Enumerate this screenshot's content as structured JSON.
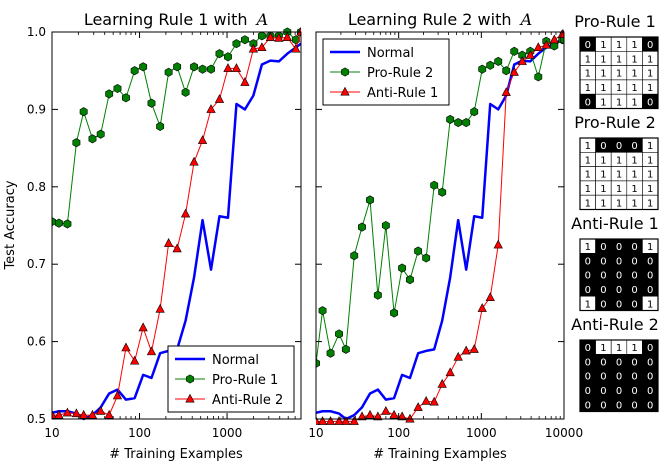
{
  "chart_data": [
    {
      "type": "line",
      "title": "Learning Rule 1 with",
      "title_symbol": "A",
      "xlabel": "# Training Examples",
      "ylabel": "Test Accuracy",
      "xscale": "log",
      "xlim": [
        10,
        7000
      ],
      "ylim": [
        0.5,
        1.0
      ],
      "xticks": [
        10,
        100,
        1000
      ],
      "xtick_labels": [
        "10",
        "100",
        "1000"
      ],
      "yticks": [
        0.5,
        0.6,
        0.7,
        0.8,
        0.9,
        1.0
      ],
      "ytick_labels": [
        "0.5",
        "0.6",
        "0.7",
        "0.8",
        "0.9",
        "1.0"
      ],
      "legend_position": "bottom-right",
      "series": [
        {
          "name": "Normal",
          "color": "#0000ff",
          "marker": "none",
          "x": [
            10,
            12,
            15,
            19,
            23,
            29,
            36,
            45,
            56,
            70,
            88,
            110,
            137,
            172,
            215,
            269,
            336,
            420,
            525,
            656,
            820,
            1025,
            1281,
            1601,
            2001,
            2502,
            3127,
            3909,
            4886,
            6107,
            7000
          ],
          "y": [
            0.508,
            0.51,
            0.51,
            0.507,
            0.5,
            0.505,
            0.515,
            0.533,
            0.538,
            0.525,
            0.527,
            0.557,
            0.553,
            0.585,
            0.588,
            0.59,
            0.627,
            0.683,
            0.757,
            0.693,
            0.762,
            0.76,
            0.907,
            0.9,
            0.918,
            0.958,
            0.963,
            0.962,
            0.972,
            0.98,
            0.985
          ]
        },
        {
          "name": "Pro-Rule 1",
          "color": "#008000",
          "marker": "hexagon",
          "x": [
            10,
            12,
            15,
            19,
            23,
            29,
            36,
            45,
            56,
            70,
            88,
            110,
            137,
            172,
            215,
            269,
            336,
            420,
            525,
            656,
            820,
            1025,
            1281,
            1601,
            2001,
            2502,
            3127,
            3909,
            4886,
            6107,
            7000
          ],
          "y": [
            0.755,
            0.753,
            0.752,
            0.857,
            0.897,
            0.862,
            0.868,
            0.92,
            0.927,
            0.915,
            0.95,
            0.955,
            0.908,
            0.878,
            0.948,
            0.955,
            0.922,
            0.955,
            0.952,
            0.952,
            0.972,
            0.968,
            0.985,
            0.99,
            0.985,
            0.995,
            0.995,
            0.995,
            1.0,
            0.99,
            1.0
          ]
        },
        {
          "name": "Anti-Rule 2",
          "color": "#ff0000",
          "marker": "triangle",
          "x": [
            10,
            12,
            15,
            19,
            23,
            29,
            36,
            45,
            56,
            70,
            88,
            110,
            137,
            172,
            215,
            269,
            336,
            420,
            525,
            656,
            820,
            1025,
            1281,
            1601,
            2001,
            2502,
            3127,
            3909,
            4886,
            6107,
            7000
          ],
          "y": [
            0.505,
            0.505,
            0.508,
            0.507,
            0.505,
            0.505,
            0.51,
            0.505,
            0.53,
            0.592,
            0.575,
            0.618,
            0.587,
            0.642,
            0.727,
            0.72,
            0.765,
            0.832,
            0.86,
            0.9,
            0.913,
            0.953,
            0.953,
            0.935,
            0.978,
            0.98,
            0.993,
            0.992,
            0.993,
            0.978,
            1.0
          ]
        }
      ]
    },
    {
      "type": "line",
      "title": "Learning Rule 2 with",
      "title_symbol": "A",
      "xlabel": "# Training Examples",
      "ylabel": "",
      "xscale": "log",
      "xlim": [
        10,
        10000
      ],
      "ylim": [
        0.5,
        1.0
      ],
      "xticks": [
        10,
        100,
        1000,
        10000
      ],
      "xtick_labels": [
        "10",
        "100",
        "1000",
        "10000"
      ],
      "legend_position": "top-left",
      "series": [
        {
          "name": "Normal",
          "color": "#0000ff",
          "marker": "none",
          "x": [
            10,
            12,
            15,
            19,
            23,
            29,
            36,
            45,
            56,
            70,
            88,
            110,
            137,
            172,
            215,
            269,
            336,
            420,
            525,
            656,
            820,
            1025,
            1281,
            1601,
            2001,
            2502,
            3127,
            3909,
            4886,
            6107,
            7634,
            9543,
            10000
          ],
          "y": [
            0.508,
            0.51,
            0.51,
            0.507,
            0.5,
            0.505,
            0.515,
            0.533,
            0.538,
            0.525,
            0.527,
            0.557,
            0.553,
            0.585,
            0.588,
            0.59,
            0.627,
            0.683,
            0.757,
            0.693,
            0.762,
            0.76,
            0.907,
            0.9,
            0.918,
            0.958,
            0.963,
            0.962,
            0.972,
            0.98,
            0.985,
            0.99,
            0.99
          ]
        },
        {
          "name": "Pro-Rule 2",
          "color": "#008000",
          "marker": "hexagon",
          "x": [
            10,
            12,
            15,
            19,
            23,
            29,
            36,
            45,
            56,
            70,
            88,
            110,
            137,
            172,
            215,
            269,
            336,
            420,
            525,
            656,
            820,
            1025,
            1281,
            1601,
            2001,
            2502,
            3127,
            3909,
            4886,
            6107,
            7634,
            9543,
            10000
          ],
          "y": [
            0.572,
            0.64,
            0.585,
            0.61,
            0.59,
            0.711,
            0.748,
            0.783,
            0.66,
            0.75,
            0.637,
            0.695,
            0.68,
            0.717,
            0.708,
            0.802,
            0.793,
            0.887,
            0.883,
            0.883,
            0.897,
            0.952,
            0.957,
            0.962,
            0.95,
            0.975,
            0.97,
            0.975,
            0.942,
            0.988,
            0.982,
            0.99,
            0.99
          ]
        },
        {
          "name": "Anti-Rule 1",
          "color": "#ff0000",
          "marker": "triangle",
          "x": [
            10,
            12,
            15,
            19,
            23,
            29,
            36,
            45,
            56,
            70,
            88,
            110,
            137,
            172,
            215,
            269,
            336,
            420,
            525,
            656,
            820,
            1025,
            1281,
            1601,
            2001,
            2502,
            3127,
            3909,
            4886,
            6107,
            7634,
            9543,
            10000
          ],
          "y": [
            0.497,
            0.497,
            0.497,
            0.497,
            0.497,
            0.497,
            0.503,
            0.505,
            0.503,
            0.51,
            0.505,
            0.503,
            0.5,
            0.515,
            0.523,
            0.522,
            0.545,
            0.56,
            0.58,
            0.588,
            0.59,
            0.643,
            0.657,
            0.725,
            0.922,
            0.948,
            0.962,
            0.97,
            0.98,
            0.983,
            0.99,
            0.997,
            0.997
          ]
        }
      ]
    }
  ],
  "rule_matrices": [
    {
      "title": "Pro-Rule 1",
      "grid": [
        [
          0,
          1,
          1,
          1,
          0
        ],
        [
          1,
          1,
          1,
          1,
          1
        ],
        [
          1,
          1,
          1,
          1,
          1
        ],
        [
          1,
          1,
          1,
          1,
          1
        ],
        [
          0,
          1,
          1,
          1,
          0
        ]
      ]
    },
    {
      "title": "Pro-Rule 2",
      "grid": [
        [
          1,
          0,
          0,
          0,
          1
        ],
        [
          1,
          1,
          1,
          1,
          1
        ],
        [
          1,
          1,
          1,
          1,
          1
        ],
        [
          1,
          1,
          1,
          1,
          1
        ],
        [
          1,
          1,
          1,
          1,
          1
        ]
      ]
    },
    {
      "title": "Anti-Rule 1",
      "grid": [
        [
          1,
          0,
          0,
          0,
          1
        ],
        [
          0,
          0,
          0,
          0,
          0
        ],
        [
          0,
          0,
          0,
          0,
          0
        ],
        [
          0,
          0,
          0,
          0,
          0
        ],
        [
          1,
          0,
          0,
          0,
          1
        ]
      ]
    },
    {
      "title": "Anti-Rule 2",
      "grid": [
        [
          0,
          1,
          1,
          1,
          0
        ],
        [
          0,
          0,
          0,
          0,
          0
        ],
        [
          0,
          0,
          0,
          0,
          0
        ],
        [
          0,
          0,
          0,
          0,
          0
        ],
        [
          0,
          0,
          0,
          0,
          0
        ]
      ]
    }
  ]
}
